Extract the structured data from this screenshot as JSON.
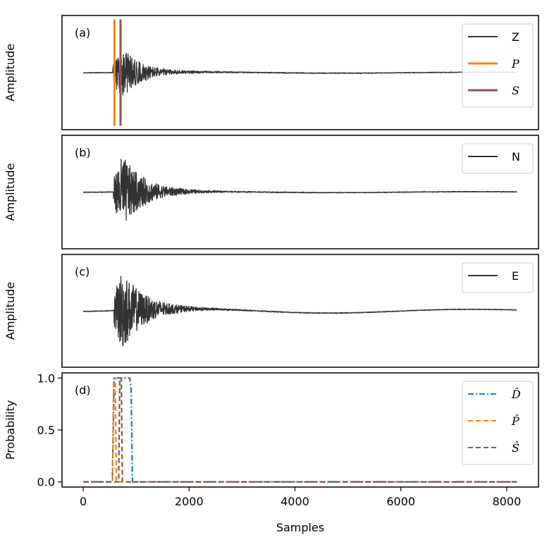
{
  "chart_data": [
    {
      "id": "a",
      "type": "line",
      "panel_label": "(a)",
      "ylabel": "Amplitude",
      "legend_position": "top-right",
      "series": [
        {
          "name": "Z",
          "kind": "waveform",
          "color": "#333333",
          "style": "solid",
          "event_start": 560,
          "peak_index": 720,
          "peak_amplitude": 0.45,
          "decay_samples": 350,
          "low_freq_amplitude": 0.01
        },
        {
          "name": "P",
          "kind": "vline",
          "x": 590,
          "color": "#ff7f0e",
          "style": "solid"
        },
        {
          "name": "S",
          "kind": "vline",
          "x": 705,
          "color": "#8c564b",
          "style": "solid"
        }
      ],
      "xlim": [
        -400,
        8600
      ],
      "ylim": [
        -1,
        1
      ]
    },
    {
      "id": "b",
      "type": "line",
      "panel_label": "(b)",
      "ylabel": "Amplitude",
      "legend_position": "top-right",
      "series": [
        {
          "name": "N",
          "kind": "waveform",
          "color": "#333333",
          "style": "solid",
          "event_start": 570,
          "peak_index": 735,
          "peak_amplitude": 0.65,
          "decay_samples": 400,
          "low_freq_amplitude": 0.01
        }
      ],
      "xlim": [
        -400,
        8600
      ],
      "ylim": [
        -1,
        1
      ]
    },
    {
      "id": "c",
      "type": "line",
      "panel_label": "(c)",
      "ylabel": "Amplitude",
      "legend_position": "top-right",
      "series": [
        {
          "name": "E",
          "kind": "waveform",
          "color": "#333333",
          "style": "solid",
          "event_start": 580,
          "peak_index": 720,
          "peak_amplitude": 0.72,
          "decay_samples": 420,
          "low_freq_amplitude": 0.04
        }
      ],
      "xlim": [
        -400,
        8600
      ],
      "ylim": [
        -1,
        1
      ]
    },
    {
      "id": "d",
      "type": "line",
      "panel_label": "(d)",
      "ylabel": "Probability",
      "xlabel": "Samples",
      "legend_position": "top-right",
      "x_ticks": [
        0,
        2000,
        4000,
        6000,
        8000
      ],
      "x_tick_labels": [
        "0",
        "2000",
        "4000",
        "6000",
        "8000"
      ],
      "y_ticks": [
        0.0,
        0.5,
        1.0
      ],
      "y_tick_labels": [
        "0.0",
        "0.5",
        "1.0"
      ],
      "xlim": [
        -400,
        8600
      ],
      "ylim": [
        -0.05,
        1.05
      ],
      "series": [
        {
          "name": "D̂",
          "color": "#1f77b4",
          "style": "dashdot",
          "points": [
            [
              0,
              0
            ],
            [
              550,
              0
            ],
            [
              585,
              1
            ],
            [
              880,
              1
            ],
            [
              905,
              0.9
            ],
            [
              930,
              0
            ],
            [
              8192,
              0
            ]
          ]
        },
        {
          "name": "P̂",
          "color": "#ff7f0e",
          "style": "dashed",
          "points": [
            [
              0,
              0
            ],
            [
              555,
              0
            ],
            [
              575,
              1
            ],
            [
              605,
              1
            ],
            [
              625,
              0
            ],
            [
              8192,
              0
            ]
          ]
        },
        {
          "name": "Ŝ",
          "color": "#8c564b",
          "style": "dashed",
          "points": [
            [
              0,
              0
            ],
            [
              670,
              0
            ],
            [
              690,
              1
            ],
            [
              720,
              1
            ],
            [
              740,
              0
            ],
            [
              8192,
              0
            ]
          ]
        }
      ]
    }
  ]
}
